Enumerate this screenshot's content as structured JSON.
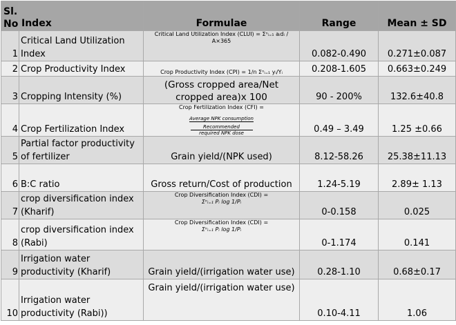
{
  "header": {
    "no": "Sl. No.",
    "index": "Index",
    "formulae": "Formulae",
    "range": "Range",
    "mean": "Mean ± SD"
  },
  "rows": [
    {
      "no": "1",
      "index": "Critical Land Utilization Index",
      "formula": "Critical Land Utilization Index (CLUI) = Σⁿᵢ₌₁ aᵢdᵢ / A×365",
      "range": "0.082-0.490",
      "mean": "0.271±0.087"
    },
    {
      "no": "2",
      "index": "Crop Productivity Index",
      "formula": "Crop Productivity Index (CPI) = 1/n Σⁿᵢ₌₁ yᵢ/Yᵢ",
      "range": "0.208-1.605",
      "mean": "0.663±0.249"
    },
    {
      "no": "3",
      "index": "Cropping Intensity (%)",
      "formula": "(Gross cropped area/Net cropped area)x 100",
      "range": "90 - 200%",
      "mean": "132.6±40.8"
    },
    {
      "no": "4",
      "index": "Crop Fertilization Index",
      "formula_title": "Crop Fertilization Index (CFI) =",
      "formula_num": "Average NPK consumption",
      "formula_mid": "Recommended",
      "formula_den": "required NPK dose",
      "range": "0.49 – 3.49",
      "mean": "1.25 ±0.66"
    },
    {
      "no": "5",
      "index": "Partial factor productivity of fertilizer",
      "formula": "Grain yield/(NPK used)",
      "range": "8.12-58.26",
      "mean": "25.38±11.13"
    },
    {
      "no": "6",
      "index": "B:C  ratio",
      "formula": "Gross return/Cost of production",
      "range": "1.24-5.19",
      "mean": "2.89± 1.13"
    },
    {
      "no": "7",
      "index": "crop diversification index (Kharif)",
      "formula_title": "Crop Diversification Index (CDI) =",
      "formula_expr": "Σⁿᵢ₌₁ Pᵢ log 1/Pᵢ",
      "range": "0-0.158",
      "mean": "0.025"
    },
    {
      "no": "8",
      "index": "crop diversification index (Rabi)",
      "formula_title": "Crop Diversification Index (CDI) =",
      "formula_expr": "Σⁿᵢ₌₁ Pᵢ log 1/Pᵢ",
      "range": "0-1.174",
      "mean": "0.141"
    },
    {
      "no": "9",
      "index": "Irrigation water productivity (Kharif)",
      "formula": "Grain yield/(irrigation water use)",
      "range": "0.28-1.10",
      "mean": "0.68±0.17"
    },
    {
      "no": "10",
      "index": "Irrigation water productivity (Rabi))",
      "formula": "Grain yield/(irrigation water use)",
      "range": "0.10-4.11",
      "mean": "1.06"
    }
  ]
}
